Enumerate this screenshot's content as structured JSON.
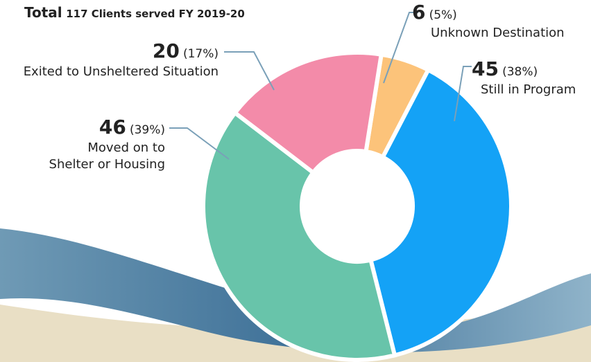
{
  "chart_data": {
    "type": "pie",
    "donut": true,
    "title": "Total",
    "subtitle": "117 Clients served FY 2019-20",
    "categories": [
      "Unknown Destination",
      "Still in Program",
      "Moved on to\nShelter or Housing",
      "Exited to Unsheltered Situation"
    ],
    "values": [
      6,
      45,
      46,
      20
    ],
    "percent_labels": [
      "(5%)",
      "(38%)",
      "(39%)",
      "(17%)"
    ],
    "colors": [
      "#fcc37a",
      "#14a2f6",
      "#68c4aa",
      "#f38ba9"
    ]
  }
}
